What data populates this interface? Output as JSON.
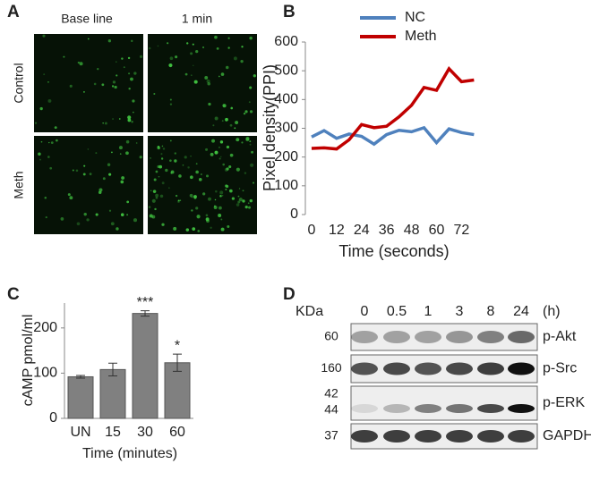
{
  "panels": {
    "a": "A",
    "b": "B",
    "c": "C",
    "d": "D"
  },
  "images": {
    "columns": [
      "Base line",
      "1 min"
    ],
    "rows": [
      "Control",
      "Meth"
    ]
  },
  "chart_data": [
    {
      "type": "line",
      "ylabel": "Pixel density(PPI)",
      "xlabel": "Time (seconds)",
      "x": [
        0,
        6,
        12,
        18,
        24,
        30,
        36,
        42,
        48,
        54,
        60,
        66,
        72,
        78
      ],
      "series": [
        {
          "name": "NC",
          "color": "#4f81bd",
          "values": [
            270,
            292,
            265,
            280,
            272,
            245,
            278,
            293,
            288,
            302,
            250,
            298,
            285,
            278
          ]
        },
        {
          "name": "Meth",
          "color": "#c00000",
          "values": [
            230,
            232,
            228,
            260,
            313,
            302,
            307,
            340,
            380,
            442,
            432,
            507,
            462,
            468
          ]
        }
      ],
      "xlim": [
        -3,
        80
      ],
      "xticks": [
        0,
        12,
        24,
        36,
        48,
        60,
        72
      ],
      "ylim": [
        0,
        600
      ],
      "yticks": [
        0,
        100,
        200,
        300,
        400,
        500,
        600
      ]
    },
    {
      "type": "bar",
      "ylabel": "cAMP pmol/ml",
      "xlabel": "Time (minutes)",
      "categories": [
        "UN",
        "15",
        "30",
        "60"
      ],
      "values": [
        92,
        108,
        232,
        123
      ],
      "errors": [
        3,
        14,
        6,
        19
      ],
      "significance": [
        null,
        null,
        "***",
        "*"
      ],
      "color": "#808080",
      "ylim": [
        0,
        255
      ],
      "yticks": [
        0,
        100,
        200
      ]
    }
  ],
  "blot": {
    "unit_header": "KDa",
    "times": [
      "0",
      "0.5",
      "1",
      "3",
      "8",
      "24"
    ],
    "time_unit": "(h)",
    "rows": [
      {
        "kda": [
          "60"
        ],
        "label": "p-Akt"
      },
      {
        "kda": [
          "160"
        ],
        "label": "p-Src"
      },
      {
        "kda": [
          "42",
          "44"
        ],
        "label": "p-ERK"
      },
      {
        "kda": [
          "37"
        ],
        "label": "GAPDH"
      }
    ]
  }
}
